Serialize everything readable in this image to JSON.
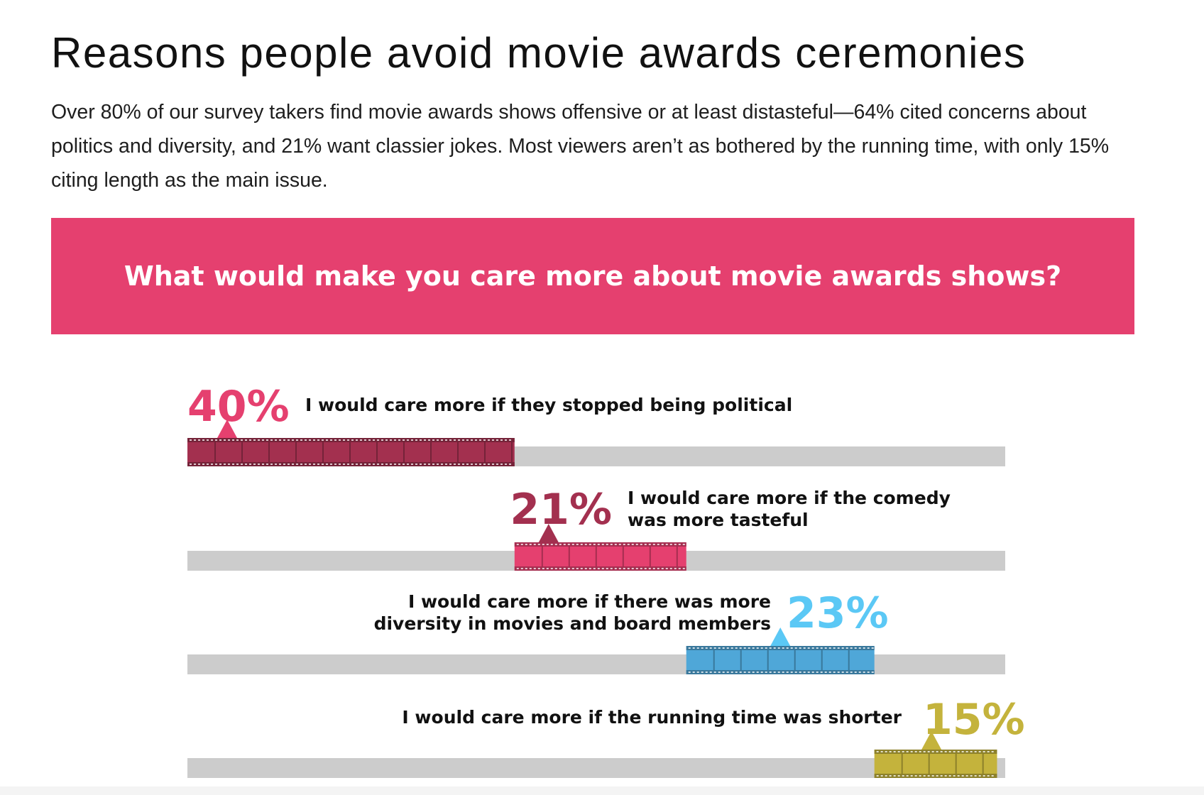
{
  "header": {
    "title": "Reasons people avoid movie awards ceremonies",
    "intro": "Over 80% of our survey takers find movie awards shows offensive or at least distasteful—64% cited concerns about politics and diversity, and 21% want classier jokes. Most viewers aren’t as bothered by the running time, with only 15% citing length as the main issue."
  },
  "banner": {
    "text": "What would make you care more about movie awards shows?",
    "color": "#e5406f"
  },
  "chart_data": {
    "type": "bar",
    "subtype": "stacked-progress",
    "title": "What would make you care more about movie awards shows?",
    "xlim": [
      0,
      100
    ],
    "track_color": "#cccccc",
    "categories": [
      "I would care more if they stopped being political",
      "I would care more if the comedy was more tasteful",
      "I would care more if there was more diversity in movies and board members",
      "I would care more if the running time was shorter"
    ],
    "values": [
      40,
      21,
      23,
      15
    ],
    "items": [
      {
        "value": 40,
        "pct_label": "40%",
        "label_lines": [
          "I would care more if they stopped being political"
        ],
        "color": "#a3304f",
        "pct_color": "#e5406f",
        "icon": "film-strip-icon"
      },
      {
        "value": 21,
        "pct_label": "21%",
        "label_lines": [
          "I would care more if the comedy",
          "was more tasteful"
        ],
        "color": "#e5406f",
        "pct_color": "#a3304f",
        "icon": "film-strip-icon"
      },
      {
        "value": 23,
        "pct_label": "23%",
        "label_lines": [
          "I would care more if there was more",
          "diversity in movies and board members"
        ],
        "color": "#4fa7d8",
        "pct_color": "#5bc8f5",
        "icon": "film-strip-icon"
      },
      {
        "value": 15,
        "pct_label": "15%",
        "label_lines": [
          "I would care more if the running time was shorter"
        ],
        "color": "#c4b33c",
        "pct_color": "#c4b33c",
        "icon": "film-strip-icon"
      }
    ]
  }
}
